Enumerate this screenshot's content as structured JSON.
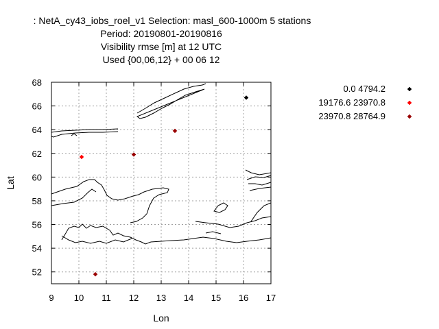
{
  "chart_data": {
    "type": "scatter",
    "title_lines": [
      ": NetA_cy43_iobs_roel_v1   Selection: masl_600-1000m      5 stations",
      "Period: 20190801-20190816",
      "Visibility rmse [m] at  12 UTC",
      "Used {00,06,12} + 00 06 12"
    ],
    "xlabel": "Lon",
    "ylabel": "Lat",
    "xlim": [
      9,
      17
    ],
    "ylim": [
      51,
      68
    ],
    "xticks": [
      9,
      10,
      11,
      12,
      13,
      14,
      15,
      16,
      17
    ],
    "yticks": [
      52,
      54,
      56,
      58,
      60,
      62,
      64,
      66,
      68
    ],
    "grid": true,
    "legend_position": "right",
    "series": [
      {
        "name": "0.0 4794.2",
        "color": "#000000",
        "points": [
          [
            16.1,
            66.7
          ]
        ]
      },
      {
        "name": "19176.6 23970.8",
        "color": "#ff0000",
        "points": [
          [
            10.1,
            61.7
          ]
        ]
      },
      {
        "name": "23970.8 28764.9",
        "color": "#990000",
        "points": [
          [
            12.0,
            61.9
          ],
          [
            13.5,
            63.9
          ],
          [
            10.6,
            51.8
          ]
        ]
      }
    ]
  }
}
